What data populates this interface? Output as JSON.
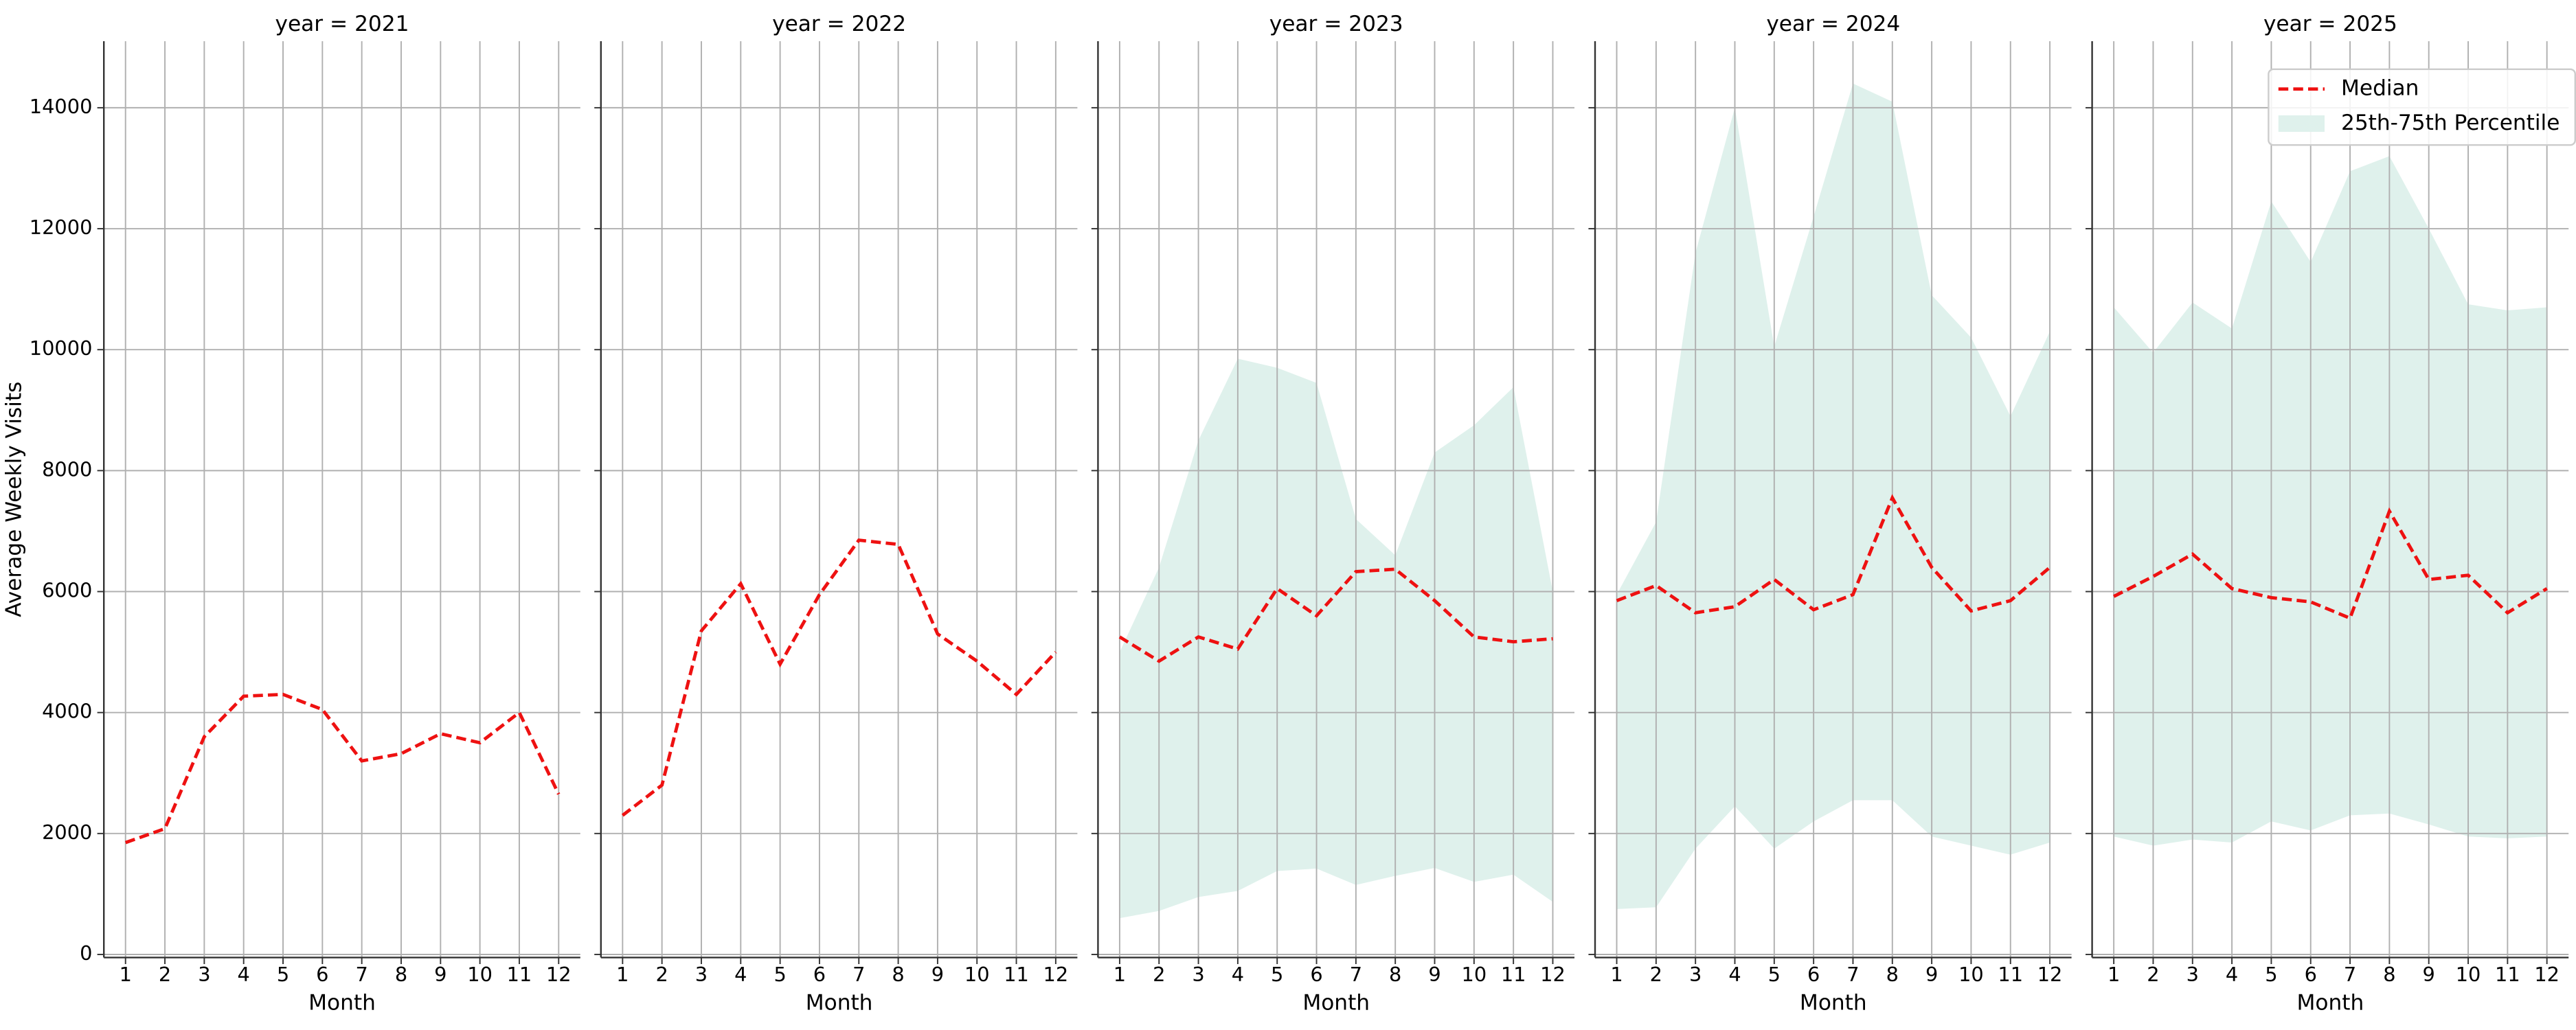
{
  "chart_data": [
    {
      "type": "line",
      "title": "year = 2021",
      "xlabel": "Month",
      "ylabel": "Average Weekly Visits",
      "x": [
        1,
        2,
        3,
        4,
        5,
        6,
        7,
        8,
        9,
        10,
        11,
        12
      ],
      "xlim": [
        0.45,
        12.55
      ],
      "xticks": [
        1,
        2,
        3,
        4,
        5,
        6,
        7,
        8,
        9,
        10,
        11,
        12
      ],
      "ylim": [
        -50,
        15100
      ],
      "yticks": [
        0,
        2000,
        4000,
        6000,
        8000,
        10000,
        12000,
        14000
      ],
      "grid": true,
      "series": [
        {
          "name": "Median",
          "color": "#ee1111",
          "values": [
            1850,
            2080,
            3600,
            4270,
            4300,
            4050,
            3200,
            3320,
            3650,
            3500,
            4000,
            2650
          ]
        }
      ]
    },
    {
      "type": "line",
      "title": "year = 2022",
      "xlabel": "Month",
      "x": [
        1,
        2,
        3,
        4,
        5,
        6,
        7,
        8,
        9,
        10,
        11,
        12
      ],
      "xlim": [
        0.45,
        12.55
      ],
      "xticks": [
        1,
        2,
        3,
        4,
        5,
        6,
        7,
        8,
        9,
        10,
        11,
        12
      ],
      "ylim": [
        -50,
        15100
      ],
      "yticks": [
        0,
        2000,
        4000,
        6000,
        8000,
        10000,
        12000,
        14000
      ],
      "grid": true,
      "series": [
        {
          "name": "Median",
          "color": "#ee1111",
          "values": [
            2300,
            2800,
            5350,
            6130,
            4800,
            5950,
            6850,
            6780,
            5300,
            4850,
            4300,
            5000
          ]
        }
      ]
    },
    {
      "type": "line",
      "title": "year = 2023",
      "xlabel": "Month",
      "x": [
        1,
        2,
        3,
        4,
        5,
        6,
        7,
        8,
        9,
        10,
        11,
        12
      ],
      "xlim": [
        0.45,
        12.55
      ],
      "xticks": [
        1,
        2,
        3,
        4,
        5,
        6,
        7,
        8,
        9,
        10,
        11,
        12
      ],
      "ylim": [
        -50,
        15100
      ],
      "yticks": [
        0,
        2000,
        4000,
        6000,
        8000,
        10000,
        12000,
        14000
      ],
      "grid": true,
      "series": [
        {
          "name": "Median",
          "color": "#ee1111",
          "values": [
            5250,
            4850,
            5250,
            5050,
            6050,
            5600,
            6330,
            6370,
            5850,
            5250,
            5170,
            5220
          ]
        },
        {
          "name": "25th-75th Percentile",
          "color": "#dff1ec",
          "lower": [
            600,
            720,
            950,
            1050,
            1380,
            1420,
            1150,
            1300,
            1430,
            1200,
            1320,
            870
          ],
          "upper": [
            5000,
            6400,
            8500,
            9850,
            9700,
            9450,
            7200,
            6600,
            8300,
            8750,
            9380,
            6000
          ]
        }
      ]
    },
    {
      "type": "line",
      "title": "year = 2024",
      "xlabel": "Month",
      "x": [
        1,
        2,
        3,
        4,
        5,
        6,
        7,
        8,
        9,
        10,
        11,
        12
      ],
      "xlim": [
        0.45,
        12.55
      ],
      "xticks": [
        1,
        2,
        3,
        4,
        5,
        6,
        7,
        8,
        9,
        10,
        11,
        12
      ],
      "ylim": [
        -50,
        15100
      ],
      "yticks": [
        0,
        2000,
        4000,
        6000,
        8000,
        10000,
        12000,
        14000
      ],
      "grid": true,
      "series": [
        {
          "name": "Median",
          "color": "#ee1111",
          "values": [
            5850,
            6100,
            5650,
            5750,
            6200,
            5700,
            5950,
            7550,
            6400,
            5680,
            5850,
            6400
          ]
        },
        {
          "name": "25th-75th Percentile",
          "color": "#dff1ec",
          "lower": [
            750,
            780,
            1750,
            2450,
            1750,
            2200,
            2550,
            2550,
            1950,
            1800,
            1650,
            1850
          ],
          "upper": [
            5950,
            7150,
            11600,
            14000,
            10050,
            12200,
            14400,
            14100,
            10900,
            10200,
            8900,
            10300
          ]
        }
      ]
    },
    {
      "type": "line",
      "title": "year = 2025",
      "xlabel": "Month",
      "x": [
        1,
        2,
        3,
        4,
        5,
        6,
        7,
        8,
        9,
        10,
        11,
        12
      ],
      "xlim": [
        0.45,
        12.55
      ],
      "xticks": [
        1,
        2,
        3,
        4,
        5,
        6,
        7,
        8,
        9,
        10,
        11,
        12
      ],
      "ylim": [
        -50,
        15100
      ],
      "yticks": [
        0,
        2000,
        4000,
        6000,
        8000,
        10000,
        12000,
        14000
      ],
      "grid": true,
      "legend": "upper right",
      "series": [
        {
          "name": "Median",
          "color": "#ee1111",
          "values": [
            5920,
            6250,
            6620,
            6050,
            5900,
            5830,
            5560,
            7330,
            6200,
            6270,
            5650,
            6050
          ]
        },
        {
          "name": "25th-75th Percentile",
          "color": "#dff1ec",
          "lower": [
            1950,
            1800,
            1900,
            1850,
            2200,
            2050,
            2300,
            2330,
            2150,
            1950,
            1920,
            1950
          ],
          "upper": [
            10700,
            9950,
            10780,
            10350,
            12450,
            11450,
            12950,
            13200,
            12000,
            10750,
            10650,
            10700
          ]
        }
      ]
    }
  ]
}
